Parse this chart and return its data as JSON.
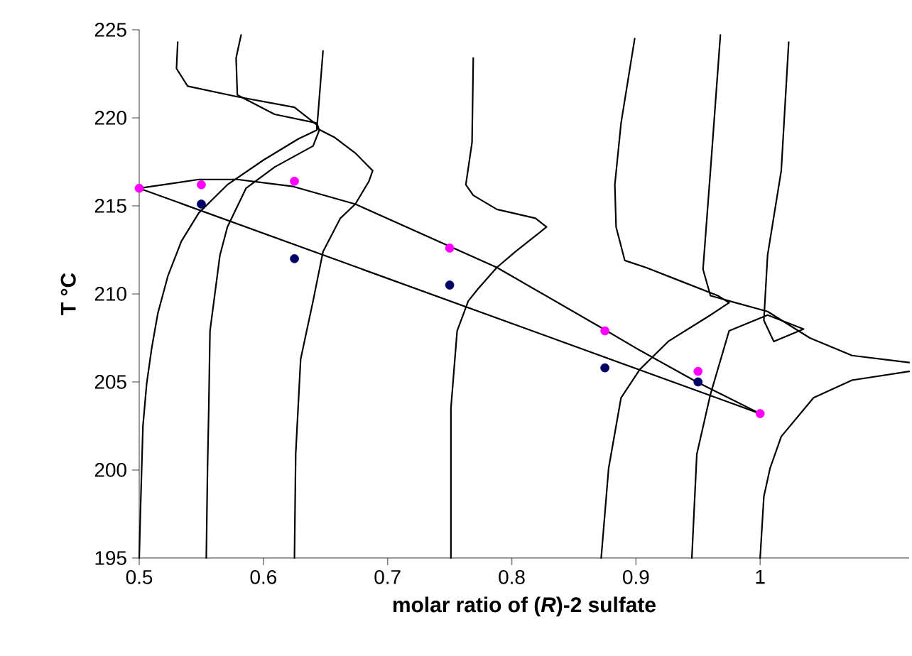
{
  "chart_data": {
    "type": "line",
    "xlabel": "molar ratio of (*R*)-2 sulfate",
    "ylabel": "T °C",
    "xlim": [
      0.5,
      1.12
    ],
    "ylim": [
      195,
      225
    ],
    "xticks": [
      0.5,
      0.6,
      0.7,
      0.8,
      0.9,
      1
    ],
    "yticks": [
      195,
      200,
      205,
      210,
      215,
      220,
      225
    ],
    "grid": false,
    "series": [
      {
        "type": "scatter",
        "color": "#ff00ff",
        "x": [
          0.5,
          0.55,
          0.625,
          0.75,
          0.875,
          0.95,
          1.0
        ],
        "values": [
          216.0,
          216.2,
          216.4,
          212.6,
          207.9,
          205.6,
          203.2
        ]
      },
      {
        "type": "scatter",
        "color": "#000066",
        "x": [
          0.55,
          0.625,
          0.75,
          0.875,
          0.95
        ],
        "values": [
          215.1,
          212.0,
          210.5,
          205.8,
          205.0
        ]
      },
      {
        "color": "#000000",
        "x": [
          0.5,
          1.0
        ],
        "values": [
          216.0,
          203.2
        ]
      },
      {
        "color": "#000000",
        "x": [
          0.5,
          0.548,
          0.579,
          0.624,
          0.674,
          0.75,
          0.788,
          0.874,
          0.903,
          0.949,
          1.0
        ],
        "values": [
          216.0,
          216.5,
          216.5,
          216.1,
          215.1,
          212.7,
          211.5,
          208.0,
          206.8,
          205.0,
          203.2
        ]
      },
      {
        "color": "#000000",
        "x": [
          0.5,
          0.501,
          0.502,
          0.503,
          0.506,
          0.51,
          0.515,
          0.523,
          0.534,
          0.548,
          0.571,
          0.6,
          0.628,
          0.643,
          0.643,
          0.625,
          0.579,
          0.539,
          0.53,
          0.531
        ],
        "values": [
          195.0,
          197.7,
          200.1,
          202.5,
          204.9,
          206.9,
          208.9,
          211.0,
          213.0,
          214.6,
          216.2,
          217.6,
          218.8,
          219.3,
          219.6,
          220.6,
          221.2,
          221.8,
          222.8,
          224.3
        ]
      },
      {
        "color": "#000000",
        "x": [
          0.554,
          0.555,
          0.556,
          0.557,
          0.565,
          0.571,
          0.586,
          0.609,
          0.64,
          0.645,
          0.643,
          0.609,
          0.579,
          0.578,
          0.582
        ],
        "values": [
          195.0,
          200.1,
          203.5,
          207.9,
          212.2,
          213.8,
          216.0,
          217.2,
          218.4,
          219.3,
          219.7,
          220.2,
          221.3,
          223.4,
          224.7
        ]
      },
      {
        "color": "#000000",
        "x": [
          0.625,
          0.626,
          0.63,
          0.64,
          0.648,
          0.662,
          0.674,
          0.685,
          0.688,
          0.674,
          0.657,
          0.643,
          0.644,
          0.648
        ],
        "values": [
          195.0,
          200.9,
          206.3,
          209.6,
          212.4,
          214.3,
          215.1,
          216.4,
          217.0,
          218.0,
          218.9,
          219.4,
          220.2,
          223.8
        ]
      },
      {
        "color": "#000000",
        "x": [
          0.751,
          0.751,
          0.756,
          0.765,
          0.773,
          0.788,
          0.803,
          0.828,
          0.819,
          0.788,
          0.769,
          0.763,
          0.768,
          0.769
        ],
        "values": [
          195.0,
          203.5,
          207.9,
          209.6,
          210.3,
          211.5,
          212.4,
          213.8,
          214.3,
          214.8,
          215.6,
          216.2,
          218.6,
          223.4
        ]
      },
      {
        "color": "#000000",
        "x": [
          0.872,
          0.878,
          0.888,
          0.903,
          0.926,
          0.96,
          0.975,
          0.966,
          0.937,
          0.908,
          0.891,
          0.884,
          0.883,
          0.888,
          0.899
        ],
        "values": [
          195.0,
          200.1,
          204.1,
          205.7,
          207.3,
          208.8,
          209.5,
          209.9,
          210.7,
          211.5,
          211.9,
          213.8,
          216.2,
          219.7,
          224.5
        ]
      },
      {
        "color": "#000000",
        "x": [
          0.945,
          0.949,
          0.96,
          0.975,
          1.006,
          1.035,
          1.011,
          1.003,
          1.006,
          1.017,
          1.023
        ],
        "values": [
          195.0,
          200.9,
          204.3,
          207.9,
          208.8,
          208.0,
          207.3,
          208.5,
          212.2,
          217.0,
          224.3
        ]
      },
      {
        "color": "#000000",
        "x": [
          1.0,
          1.003,
          1.008,
          1.017,
          1.043,
          1.074,
          1.12
        ],
        "values": [
          195.0,
          198.5,
          200.1,
          201.9,
          204.1,
          205.1,
          205.6
        ]
      },
      {
        "color": "#000000",
        "x": [
          1.12,
          1.074,
          1.04,
          1.006,
          0.975,
          0.96,
          0.954,
          0.96,
          0.968
        ],
        "values": [
          206.1,
          206.5,
          207.5,
          209.0,
          209.6,
          209.9,
          211.4,
          217.0,
          224.7
        ]
      }
    ]
  }
}
